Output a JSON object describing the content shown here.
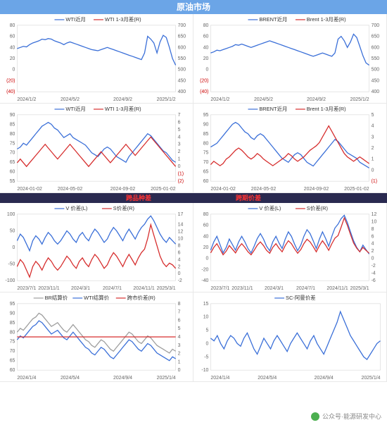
{
  "banner_main": "原油市场",
  "sub_banner_left": "跨品种差",
  "sub_banner_right": "跨期价差",
  "credit": "公众号·能源研发中心",
  "colors": {
    "blue": "#3a6fd8",
    "red": "#d62d2d",
    "gray": "#9e9e9e",
    "axis": "#666666",
    "grid": "#e8e8e8"
  },
  "charts": {
    "c1": {
      "legend": [
        {
          "label": "WTI近月",
          "color": "#3a6fd8"
        },
        {
          "label": "WTI 1-3月差(R)",
          "color": "#d62d2d"
        }
      ],
      "yL": {
        "ticks": [
          -40,
          -20,
          0,
          20,
          40,
          60,
          80
        ],
        "neg": [
          -40,
          -20
        ]
      },
      "yR": {
        "ticks": [
          400,
          450,
          500,
          550,
          600,
          650,
          700
        ]
      },
      "xLabels": [
        "2024/1/2",
        "2024/5/2",
        "2024/9/2",
        "2025/1/2"
      ],
      "blue": [
        38,
        40,
        42,
        41,
        45,
        48,
        50,
        52,
        55,
        54,
        56,
        55,
        52,
        50,
        48,
        45,
        48,
        50,
        48,
        46,
        44,
        42,
        40,
        38,
        36,
        35,
        34,
        36,
        38,
        40,
        38,
        36,
        34,
        32,
        30,
        28,
        26,
        24,
        22,
        20,
        18,
        30,
        60,
        55,
        48,
        30,
        50,
        62,
        58,
        40,
        20,
        8
      ],
      "red": [
        -5,
        -3,
        0,
        2,
        -2,
        -5,
        -3,
        0,
        3,
        5,
        2,
        0,
        -2,
        0,
        3,
        5,
        3,
        0,
        -3,
        -5,
        -8,
        -10,
        -8,
        -5,
        -2,
        0,
        2,
        0,
        -2,
        -5,
        -30,
        -10,
        -5,
        0,
        -3,
        -5,
        -8,
        -10,
        0,
        40,
        50,
        30,
        10,
        38,
        45,
        20,
        5,
        -5,
        -10,
        -8,
        -5,
        0
      ]
    },
    "c2": {
      "legend": [
        {
          "label": "BRENT近月",
          "color": "#3a6fd8"
        },
        {
          "label": "Brent 1-3月差(R)",
          "color": "#d62d2d"
        }
      ],
      "yL": {
        "ticks": [
          -40,
          -20,
          0,
          20,
          40,
          60,
          80
        ],
        "neg": [
          -40,
          -20
        ]
      },
      "yR": {
        "ticks": [
          400,
          450,
          500,
          550,
          600,
          650,
          700
        ]
      },
      "xLabels": [
        "2024/1/2",
        "2024/5/2",
        "2024/9/2",
        "2025/1/2"
      ],
      "blue": [
        30,
        32,
        35,
        34,
        36,
        38,
        40,
        42,
        45,
        44,
        46,
        44,
        42,
        40,
        42,
        44,
        46,
        48,
        50,
        52,
        50,
        48,
        46,
        44,
        42,
        40,
        38,
        36,
        34,
        32,
        30,
        28,
        26,
        24,
        26,
        28,
        30,
        28,
        26,
        24,
        30,
        55,
        60,
        52,
        40,
        50,
        64,
        58,
        42,
        25,
        12,
        8
      ],
      "red": [
        0,
        2,
        0,
        -2,
        0,
        3,
        5,
        3,
        0,
        -3,
        -5,
        -2,
        0,
        2,
        5,
        3,
        0,
        -2,
        -5,
        -3,
        0,
        2,
        0,
        -3,
        -5,
        -8,
        -6,
        -4,
        -2,
        0,
        -28,
        -15,
        -8,
        -2,
        0,
        -3,
        -5,
        -2,
        5,
        35,
        48,
        32,
        15,
        40,
        48,
        25,
        8,
        -2,
        -8,
        -5,
        -2,
        0
      ]
    },
    "c3": {
      "legend": [
        {
          "label": "WTI近月",
          "color": "#3a6fd8"
        },
        {
          "label": "WTI 1-3月差(R)",
          "color": "#d62d2d"
        }
      ],
      "yL": {
        "ticks": [
          55,
          60,
          65,
          70,
          75,
          80,
          85,
          90
        ]
      },
      "yR": {
        "ticks": [
          -2,
          -1,
          0,
          1,
          2,
          3,
          4,
          5,
          6,
          7
        ],
        "neg": [
          -2,
          -1
        ]
      },
      "xLabels": [
        "2024-01-02",
        "2024-05-02",
        "2024-09-02",
        "2025-01-02"
      ],
      "blue": [
        72,
        73,
        75,
        74,
        76,
        78,
        80,
        82,
        84,
        85,
        86,
        85,
        83,
        82,
        80,
        78,
        79,
        80,
        78,
        77,
        76,
        75,
        74,
        72,
        70,
        69,
        68,
        70,
        72,
        73,
        72,
        70,
        68,
        67,
        66,
        65,
        68,
        70,
        72,
        74,
        76,
        78,
        80,
        79,
        77,
        75,
        73,
        71,
        70,
        68,
        66,
        65
      ],
      "red": [
        0.5,
        1,
        0.5,
        0,
        0.5,
        1,
        1.5,
        2,
        2.5,
        3,
        2.5,
        2,
        1.5,
        1,
        1.5,
        2,
        2.5,
        3,
        2.5,
        2,
        1.5,
        1,
        0.5,
        0,
        0.5,
        1,
        1.5,
        2,
        1.5,
        1,
        0.5,
        1,
        1.5,
        2,
        2.5,
        3,
        2.5,
        2,
        1.5,
        2,
        2.5,
        3,
        3.5,
        4,
        3.5,
        3,
        2.5,
        2,
        1.5,
        1,
        0.5,
        0
      ]
    },
    "c4": {
      "legend": [
        {
          "label": "BRENT近月",
          "color": "#3a6fd8"
        },
        {
          "label": "Brent 1-3月差(R)",
          "color": "#d62d2d"
        }
      ],
      "yL": {
        "ticks": [
          60,
          65,
          70,
          75,
          80,
          85,
          90,
          95
        ]
      },
      "yR": {
        "ticks": [
          -1,
          0,
          1,
          2,
          3,
          4,
          5
        ],
        "neg": [
          -1
        ]
      },
      "xLabels": [
        "2024-01-02",
        "2024-05-02",
        "2024-09-02",
        "2025-01-02"
      ],
      "blue": [
        78,
        79,
        80,
        82,
        84,
        86,
        88,
        90,
        91,
        90,
        88,
        86,
        85,
        83,
        82,
        84,
        85,
        84,
        82,
        80,
        78,
        76,
        74,
        72,
        71,
        70,
        72,
        74,
        75,
        74,
        72,
        70,
        69,
        68,
        70,
        72,
        74,
        76,
        78,
        80,
        82,
        81,
        79,
        77,
        75,
        74,
        73,
        72,
        70,
        69,
        68,
        67
      ],
      "red": [
        0.5,
        0.8,
        0.6,
        0.4,
        0.6,
        1,
        1.2,
        1.5,
        1.8,
        2,
        1.8,
        1.5,
        1.2,
        1,
        1.2,
        1.5,
        1.3,
        1,
        0.8,
        0.6,
        0.4,
        0.6,
        0.8,
        1,
        1.2,
        1.5,
        1.3,
        1,
        0.8,
        1,
        1.2,
        1.5,
        1.8,
        2,
        2.2,
        2.5,
        3,
        3.5,
        4,
        3.5,
        3,
        2.5,
        2,
        1.5,
        1.2,
        1,
        0.8,
        1,
        1.2,
        1,
        0.8,
        0.6
      ]
    },
    "c5": {
      "legend": [
        {
          "label": "V 价差(L)",
          "color": "#3a6fd8"
        },
        {
          "label": "S价差(R)",
          "color": "#d62d2d"
        }
      ],
      "yL": {
        "ticks": [
          -100,
          -50,
          0,
          50,
          100
        ]
      },
      "yR": {
        "ticks": [
          -2,
          0,
          2,
          4,
          6,
          8,
          10,
          12,
          14,
          17
        ]
      },
      "xLabels": [
        "2023/7/1",
        "2023/11/1",
        "2024/3/1",
        "2024/7/1",
        "2024/11/1",
        "2025/3/1"
      ],
      "blue": [
        20,
        40,
        30,
        10,
        -10,
        20,
        35,
        25,
        10,
        30,
        45,
        35,
        20,
        10,
        20,
        35,
        50,
        40,
        25,
        15,
        35,
        45,
        30,
        20,
        40,
        55,
        45,
        30,
        15,
        25,
        45,
        60,
        50,
        35,
        20,
        40,
        55,
        40,
        25,
        45,
        60,
        70,
        85,
        95,
        80,
        60,
        40,
        25,
        15,
        30,
        20,
        10
      ],
      "red": [
        2,
        4,
        3,
        1,
        -1,
        2,
        3.5,
        2.5,
        1,
        3,
        4.5,
        3.5,
        2,
        1,
        2,
        3.5,
        5,
        4,
        2.5,
        1.5,
        3.5,
        4.5,
        3,
        2,
        4,
        5.5,
        4.5,
        3,
        1.5,
        2.5,
        4.5,
        6,
        5,
        3.5,
        2,
        4,
        5.5,
        4,
        2.5,
        4.5,
        6,
        7,
        10,
        14,
        11,
        8,
        5,
        3,
        2,
        3,
        2.5,
        1.5
      ]
    },
    "c6": {
      "legend": [
        {
          "label": "V 价差(L)",
          "color": "#3a6fd8"
        },
        {
          "label": "S价差(R)",
          "color": "#d62d2d"
        }
      ],
      "yL": {
        "ticks": [
          -40,
          -20,
          0,
          20,
          40,
          60,
          80
        ]
      },
      "yR": {
        "ticks": [
          -6,
          -4,
          -2,
          0,
          2,
          4,
          6,
          8,
          10,
          12
        ]
      },
      "xLabels": [
        "2023/7/1",
        "2023/11/1",
        "2024/3/1",
        "2024/7/1",
        "2024/11/1",
        "2025/3/1"
      ],
      "blue": [
        15,
        30,
        40,
        25,
        10,
        20,
        35,
        25,
        15,
        30,
        40,
        30,
        18,
        10,
        22,
        36,
        45,
        35,
        22,
        14,
        30,
        40,
        28,
        18,
        35,
        48,
        40,
        26,
        14,
        24,
        40,
        52,
        45,
        32,
        18,
        35,
        48,
        36,
        22,
        40,
        55,
        62,
        72,
        78,
        65,
        48,
        32,
        20,
        12,
        24,
        16,
        8
      ],
      "red": [
        1.5,
        3,
        4,
        2.5,
        1,
        2,
        3.5,
        2.5,
        1.5,
        3,
        4,
        3,
        1.8,
        1,
        2.2,
        3.6,
        4.5,
        3.5,
        2.2,
        1.4,
        3,
        4,
        2.8,
        1.8,
        3.5,
        4.8,
        4,
        2.6,
        1.4,
        2.4,
        4,
        5.2,
        4.5,
        3.2,
        1.8,
        3.5,
        4.8,
        3.6,
        2.2,
        4,
        5.5,
        6.2,
        8.5,
        11,
        9,
        6.5,
        4.2,
        2.8,
        1.8,
        3,
        2.2,
        1.4
      ]
    },
    "c7": {
      "legend": [
        {
          "label": "BR结算价",
          "color": "#9e9e9e"
        },
        {
          "label": "WTI结算价",
          "color": "#3a6fd8"
        },
        {
          "label": "跨市价差(R)",
          "color": "#d62d2d"
        }
      ],
      "yL": {
        "ticks": [
          60,
          65,
          70,
          75,
          80,
          85,
          90,
          95
        ]
      },
      "yR": {
        "ticks": [
          0,
          1,
          2,
          3,
          4,
          5,
          6,
          7,
          8
        ]
      },
      "xLabels": [
        "2024/1/4",
        "2024/5/4",
        "2024/9/4",
        "2025/1/4"
      ],
      "gray": [
        80,
        82,
        81,
        83,
        85,
        87,
        88,
        90,
        89,
        87,
        85,
        83,
        84,
        85,
        83,
        81,
        80,
        82,
        84,
        82,
        80,
        78,
        76,
        75,
        73,
        72,
        74,
        76,
        75,
        73,
        71,
        70,
        72,
        74,
        76,
        78,
        80,
        79,
        77,
        75,
        74,
        76,
        78,
        77,
        75,
        73,
        72,
        71,
        70,
        69,
        71,
        70
      ],
      "blue": [
        76,
        78,
        77,
        79,
        81,
        83,
        84,
        86,
        85,
        83,
        81,
        79,
        80,
        81,
        79,
        77,
        76,
        78,
        80,
        78,
        76,
        74,
        72,
        71,
        69,
        68,
        70,
        72,
        71,
        69,
        67,
        66,
        68,
        70,
        72,
        74,
        76,
        75,
        73,
        71,
        70,
        72,
        74,
        73,
        71,
        69,
        68,
        67,
        66,
        65,
        67,
        66
      ],
      "red": [
        4,
        4,
        4,
        4,
        4,
        4,
        4,
        4,
        4,
        4,
        4,
        4,
        4,
        4,
        4,
        4,
        4,
        4,
        4,
        4,
        4,
        4,
        4,
        4,
        4,
        4,
        4,
        4,
        4,
        4,
        4,
        4,
        4,
        4,
        4,
        4,
        4,
        4,
        4,
        4,
        4,
        4,
        4,
        4,
        4,
        4,
        4,
        4,
        4,
        4,
        4,
        4
      ]
    },
    "c8": {
      "legend": [
        {
          "label": "SC-阿曼价差",
          "color": "#3a6fd8"
        }
      ],
      "yL": {
        "ticks": [
          -10,
          -5,
          0,
          5,
          10,
          15
        ]
      },
      "xLabels": [
        "2024/1/4",
        "2024/5/4",
        "2024/9/4",
        "2025/1/4"
      ],
      "blue": [
        2,
        1,
        3,
        0,
        -2,
        1,
        3,
        2,
        0,
        -1,
        2,
        4,
        1,
        -2,
        -4,
        -1,
        2,
        0,
        -2,
        1,
        3,
        1,
        -1,
        -3,
        0,
        2,
        4,
        2,
        0,
        -2,
        1,
        3,
        0,
        -2,
        -4,
        -1,
        2,
        5,
        8,
        12,
        9,
        6,
        3,
        1,
        -1,
        -3,
        -5,
        -6,
        -4,
        -2,
        0,
        1
      ]
    }
  }
}
